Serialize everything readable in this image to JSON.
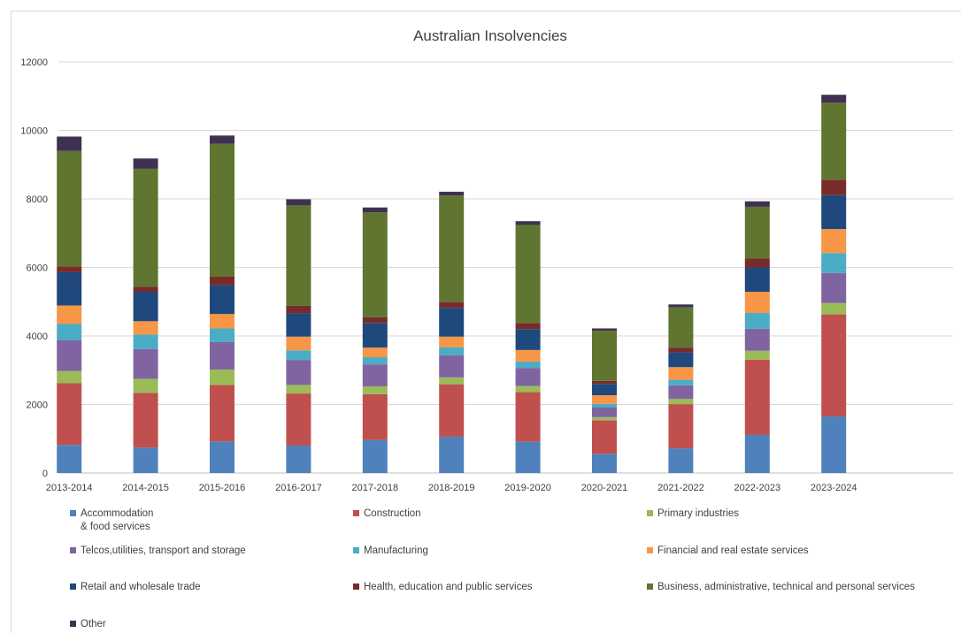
{
  "chart_data": {
    "type": "bar",
    "stacked": true,
    "title": "Australian Insolvencies",
    "xlabel": "",
    "ylabel": "",
    "ylim": [
      0,
      12000
    ],
    "yticks": [
      0,
      2000,
      4000,
      6000,
      8000,
      10000,
      12000
    ],
    "grid": true,
    "legend_position": "bottom",
    "categories": [
      "2013-2014",
      "2014-2015",
      "2015-2016",
      "2016-2017",
      "2017-2018",
      "2018-2019",
      "2019-2020",
      "2020-2021",
      "2021-2022",
      "2022-2023",
      "2023-2024"
    ],
    "series": [
      {
        "name": "Accommodation\n& food services",
        "color": "#4f81bd",
        "values": [
          820,
          740,
          920,
          800,
          960,
          1060,
          910,
          560,
          720,
          1110,
          1650
        ]
      },
      {
        "name": "Construction",
        "color": "#c0504d",
        "values": [
          1800,
          1600,
          1650,
          1520,
          1340,
          1530,
          1450,
          980,
          1290,
          2200,
          2980
        ]
      },
      {
        "name": "Primary industries",
        "color": "#9bbb59",
        "values": [
          360,
          410,
          450,
          250,
          230,
          200,
          180,
          90,
          150,
          260,
          330
        ]
      },
      {
        "name": "Telcos,utilities, transport and storage",
        "color": "#8064a2",
        "values": [
          900,
          870,
          800,
          730,
          640,
          650,
          520,
          290,
          400,
          640,
          880
        ]
      },
      {
        "name": "Manufacturing",
        "color": "#4bacc6",
        "values": [
          470,
          420,
          400,
          280,
          210,
          230,
          190,
          100,
          160,
          460,
          580
        ]
      },
      {
        "name": "Financial and real estate services",
        "color": "#f79646",
        "values": [
          540,
          390,
          420,
          400,
          280,
          310,
          340,
          250,
          370,
          620,
          700
        ]
      },
      {
        "name": "Retail and wholesale trade",
        "color": "#1f497d",
        "values": [
          970,
          860,
          840,
          680,
          720,
          840,
          610,
          330,
          430,
          710,
          990
        ]
      },
      {
        "name": "Health, education and public services",
        "color": "#772c2a",
        "values": [
          170,
          150,
          250,
          220,
          170,
          170,
          180,
          90,
          140,
          260,
          450
        ]
      },
      {
        "name": "Business, administrative, technical and personal services",
        "color": "#5f7530",
        "values": [
          3370,
          3440,
          3880,
          2930,
          3060,
          3110,
          2860,
          1460,
          1180,
          1510,
          2250
        ]
      },
      {
        "name": "Other",
        "color": "#3f3151",
        "values": [
          420,
          300,
          240,
          180,
          140,
          110,
          110,
          70,
          80,
          160,
          230
        ]
      }
    ]
  }
}
